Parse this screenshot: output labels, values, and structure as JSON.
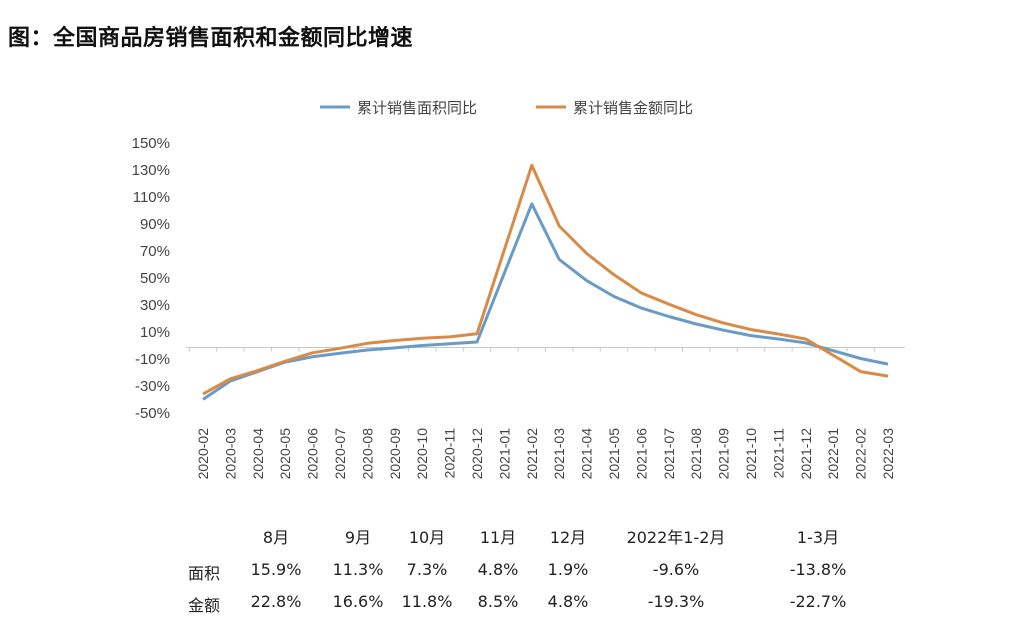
{
  "title": "图：全国商品房销售面积和金额同比增速",
  "chart_data": {
    "type": "line",
    "title": "",
    "xlabel": "",
    "ylabel": "",
    "ylim": [
      -50,
      150
    ],
    "yticks": [
      "150%",
      "130%",
      "110%",
      "90%",
      "70%",
      "50%",
      "30%",
      "10%",
      "-10%",
      "-30%",
      "-50%"
    ],
    "ytick_values": [
      150,
      130,
      110,
      90,
      70,
      50,
      30,
      10,
      -10,
      -30,
      -50
    ],
    "legend_position": "top-center",
    "grid": false,
    "categories": [
      "2020-02",
      "2020-03",
      "2020-04",
      "2020-05",
      "2020-06",
      "2020-07",
      "2020-08",
      "2020-09",
      "2020-10",
      "2020-11",
      "2020-12",
      "2021-01",
      "2021-02",
      "2021-03",
      "2021-04",
      "2021-05",
      "2021-06",
      "2021-07",
      "2021-08",
      "2021-09",
      "2021-10",
      "2021-11",
      "2021-12",
      "2022-01",
      "2022-02",
      "2022-03"
    ],
    "series": [
      {
        "name": "累计销售面积同比",
        "color": "#6a9bc6",
        "values": [
          -39.9,
          -26.3,
          -19.3,
          -12.3,
          -8.4,
          -5.8,
          -3.3,
          -1.8,
          0.0,
          1.3,
          2.6,
          null,
          104.9,
          63.8,
          48.1,
          36.3,
          27.7,
          21.5,
          15.9,
          11.3,
          7.3,
          4.8,
          1.9,
          null,
          -9.6,
          -13.8
        ]
      },
      {
        "name": "累计销售金额同比",
        "color": "#d98a47",
        "values": [
          -35.9,
          -24.7,
          -18.6,
          -11.6,
          -5.4,
          -2.1,
          1.6,
          3.7,
          5.3,
          6.4,
          8.7,
          null,
          133.4,
          88.5,
          68.2,
          52.4,
          38.9,
          30.7,
          22.8,
          16.6,
          11.8,
          8.5,
          4.8,
          null,
          -19.3,
          -22.7
        ]
      }
    ]
  },
  "table": {
    "headers": [
      "8月",
      "9月",
      "10月",
      "11月",
      "12月",
      "2022年1-2月",
      "1-3月"
    ],
    "rows": [
      {
        "label": "面积",
        "values": [
          "15.9%",
          "11.3%",
          "7.3%",
          "4.8%",
          "1.9%",
          "-9.6%",
          "-13.8%"
        ]
      },
      {
        "label": "金额",
        "values": [
          "22.8%",
          "16.6%",
          "11.8%",
          "8.5%",
          "4.8%",
          "-19.3%",
          "-22.7%"
        ]
      }
    ]
  }
}
